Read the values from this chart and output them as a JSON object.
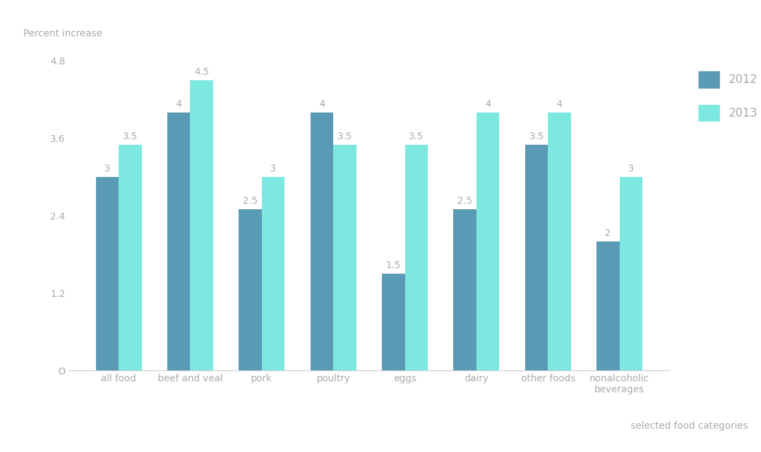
{
  "categories": [
    "all food",
    "beef and veal",
    "pork",
    "poultry",
    "eggs",
    "dairy",
    "other foods",
    "nonalcoholic\nbeverages"
  ],
  "values_2012": [
    3,
    4,
    2.5,
    4,
    1.5,
    2.5,
    3.5,
    2
  ],
  "values_2013": [
    3.5,
    4.5,
    3,
    3.5,
    3.5,
    4,
    4,
    3
  ],
  "color_2012": "#5b9ab5",
  "color_2013": "#7de8e0",
  "ylabel": "Percent increase",
  "xlabel": "selected food categories",
  "ylim": [
    0,
    4.9
  ],
  "yticks": [
    0,
    1.2,
    2.4,
    3.6,
    4.8
  ],
  "ytick_labels": [
    "O",
    "1.2",
    "2.4",
    "3.6",
    "4.8"
  ],
  "bar_width": 0.32,
  "legend_labels": [
    "2012",
    "2013"
  ],
  "background_color": "#ffffff",
  "annotation_color": "#aaaaaa",
  "axis_color": "#cccccc",
  "label_fontsize": 10,
  "annotation_fontsize": 10,
  "legend_fontsize": 12,
  "tick_fontsize": 10
}
